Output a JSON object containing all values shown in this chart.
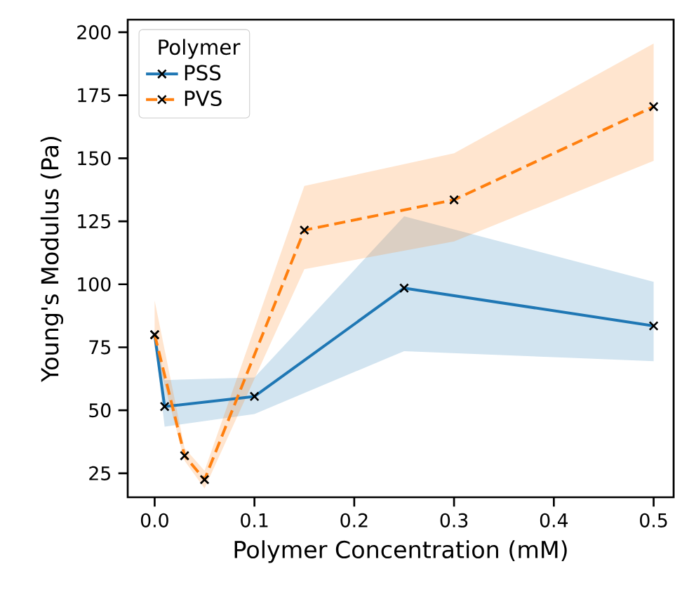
{
  "chart_data": {
    "type": "line",
    "xlabel": "Polymer Concentration (mM)",
    "ylabel": "Young's Modulus (Pa)",
    "legend_title": "Polymer",
    "legend": "top left",
    "grid": false,
    "marker": "cross",
    "xlim": [
      -0.027,
      0.52
    ],
    "xticks": [
      {
        "value": 0,
        "label": "0.0"
      },
      0.1,
      0.2,
      0.3,
      0.4,
      0.5
    ],
    "ylim": [
      15.5,
      205
    ],
    "yticks": [
      25,
      50,
      75,
      100,
      125,
      150,
      175,
      200
    ],
    "series": [
      {
        "name": "PSS",
        "color": "#1f77b4",
        "line_style": "solid",
        "x": [
          0,
          0.01,
          0.1,
          0.25,
          0.5
        ],
        "values": [
          80,
          51.5,
          55.5,
          98.5,
          83.5
        ],
        "lower": [
          78,
          43.5,
          48.5,
          73.5,
          69.5
        ],
        "upper": [
          82,
          62,
          63,
          127,
          101
        ]
      },
      {
        "name": "PVS",
        "color": "#ff7f0e",
        "line_style": "dashed",
        "x": [
          0,
          0.03,
          0.05,
          0.15,
          0.3,
          0.5
        ],
        "values": [
          80,
          32,
          22.5,
          121.5,
          133.5,
          170.5
        ],
        "lower": [
          75,
          30,
          19,
          106,
          117,
          149
        ],
        "upper": [
          93.5,
          35,
          26,
          139,
          152,
          195.5
        ]
      }
    ]
  }
}
